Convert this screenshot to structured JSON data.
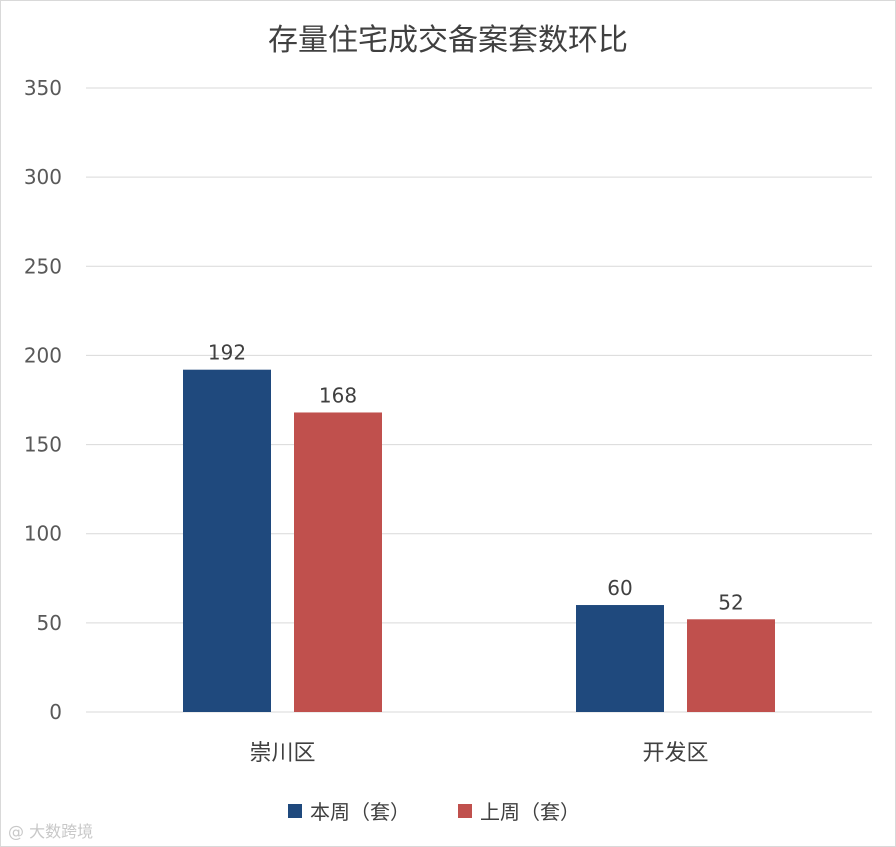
{
  "chart_data": {
    "type": "bar",
    "title": "存量住宅成交备案套数环比",
    "categories": [
      "崇川区",
      "开发区"
    ],
    "series": [
      {
        "name": "本周（套）",
        "values": [
          192,
          60
        ],
        "color": "#1f497d"
      },
      {
        "name": "上周（套）",
        "values": [
          168,
          52
        ],
        "color": "#c0504d"
      }
    ],
    "yticks": [
      0,
      50,
      100,
      150,
      200,
      250,
      300,
      350
    ],
    "ylim": [
      0,
      350
    ],
    "grid": true,
    "legend": "bottom",
    "data_labels": true
  },
  "watermark": {
    "text": "大数跨境",
    "logo": "@"
  }
}
